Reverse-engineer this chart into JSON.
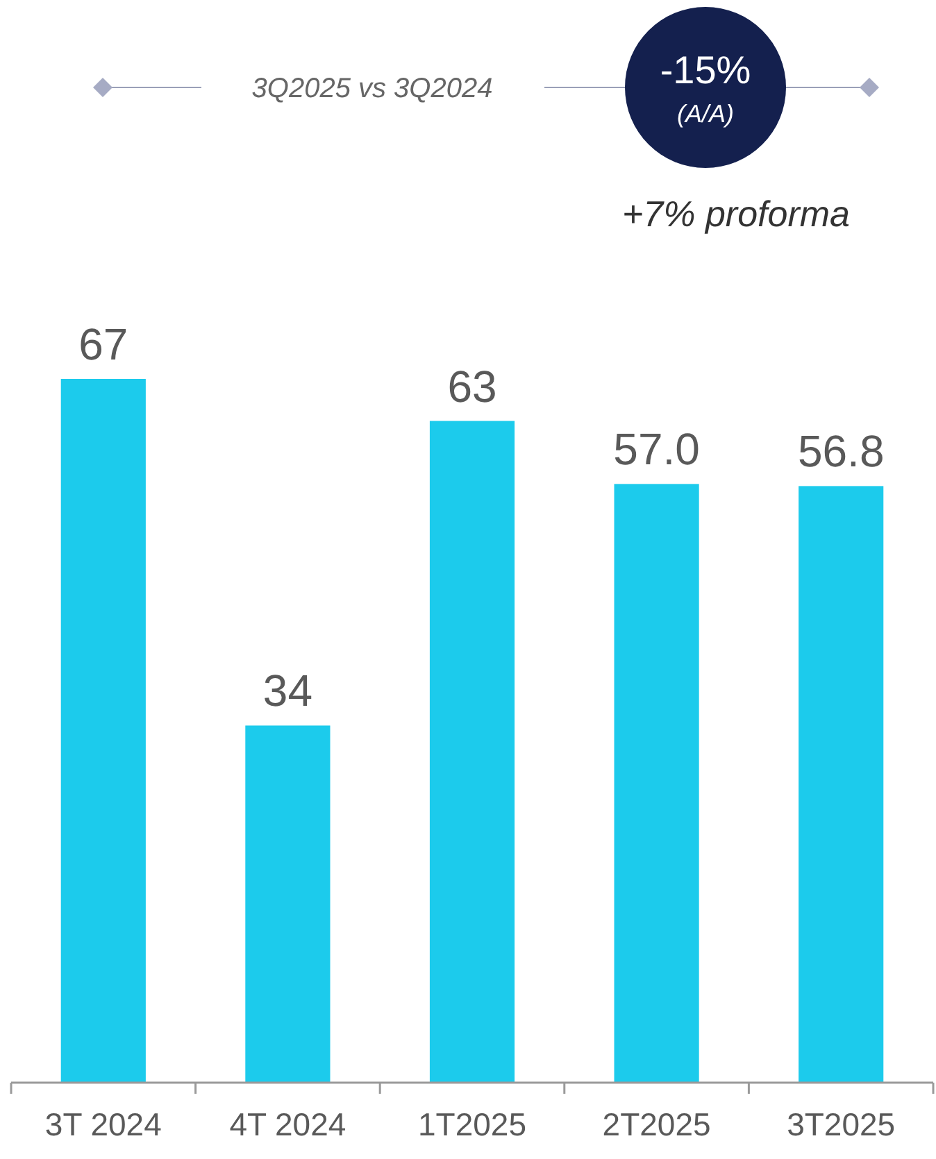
{
  "chart_data": {
    "type": "bar",
    "categories": [
      "3T 2024",
      "4T 2024",
      "1T2025",
      "2T2025",
      "3T2025"
    ],
    "values": [
      67,
      34,
      63,
      57.0,
      56.8
    ],
    "value_labels": [
      "67",
      "34",
      "63",
      "57.0",
      "56.8"
    ],
    "color": "#1ccbec",
    "annotations": [
      "3Q2025 vs 3Q2024",
      "-15%",
      "(A/A)",
      "+7% proforma"
    ]
  }
}
